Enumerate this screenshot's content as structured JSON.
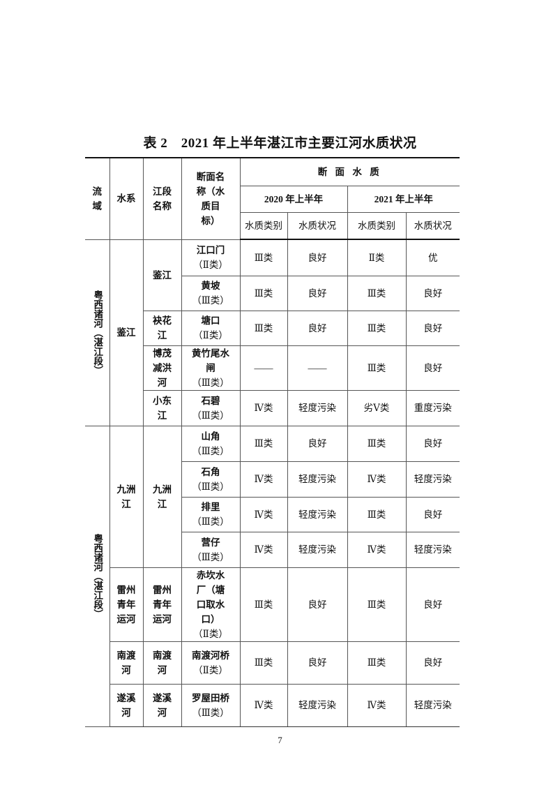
{
  "title": "表 2　2021 年上半年湛江市主要江河水质状况",
  "header": {
    "basin": "流域",
    "system": "水系",
    "segment": "江段名称",
    "section": "断面名称（水质目标）",
    "quality": "断 面 水 质",
    "year2020": "2020 年上半年",
    "year2021": "2021 年上半年",
    "category": "水质类别",
    "status": "水质状况"
  },
  "basins": [
    "粤西诸河（湛江段）",
    "粤西诸河（湛江段）"
  ],
  "systems": [
    "鉴江",
    "九洲江",
    "雷州青年运河",
    "南渡河",
    "遂溪河"
  ],
  "segments": [
    "鉴江",
    "袂花江",
    "博茂减洪河",
    "小东江",
    "九洲江",
    "雷州青年运河",
    "南渡河",
    "遂溪河"
  ],
  "rows": [
    {
      "name": "江口门",
      "target": "（Ⅱ类）",
      "c2020": "Ⅲ类",
      "s2020": "良好",
      "c2021": "Ⅱ类",
      "s2021": "优"
    },
    {
      "name": "黄坡",
      "target": "（Ⅲ类）",
      "c2020": "Ⅲ类",
      "s2020": "良好",
      "c2021": "Ⅲ类",
      "s2021": "良好"
    },
    {
      "name": "塘口",
      "target": "（Ⅱ类）",
      "c2020": "Ⅲ类",
      "s2020": "良好",
      "c2021": "Ⅲ类",
      "s2021": "良好"
    },
    {
      "name": "黄竹尾水闸",
      "target": "（Ⅲ类）",
      "c2020": "——",
      "s2020": "——",
      "c2021": "Ⅲ类",
      "s2021": "良好"
    },
    {
      "name": "石碧",
      "target": "（Ⅲ类）",
      "c2020": "Ⅳ类",
      "s2020": "轻度污染",
      "c2021": "劣Ⅴ类",
      "s2021": "重度污染"
    },
    {
      "name": "山角",
      "target": "（Ⅲ类）",
      "c2020": "Ⅲ类",
      "s2020": "良好",
      "c2021": "Ⅲ类",
      "s2021": "良好"
    },
    {
      "name": "石角",
      "target": "（Ⅲ类）",
      "c2020": "Ⅳ类",
      "s2020": "轻度污染",
      "c2021": "Ⅳ类",
      "s2021": "轻度污染"
    },
    {
      "name": "排里",
      "target": "（Ⅲ类）",
      "c2020": "Ⅳ类",
      "s2020": "轻度污染",
      "c2021": "Ⅲ类",
      "s2021": "良好"
    },
    {
      "name": "营仔",
      "target": "（Ⅲ类）",
      "c2020": "Ⅳ类",
      "s2020": "轻度污染",
      "c2021": "Ⅳ类",
      "s2021": "轻度污染"
    },
    {
      "name": "赤坎水厂（塘口取水口）",
      "target": "（Ⅱ类）",
      "c2020": "Ⅲ类",
      "s2020": "良好",
      "c2021": "Ⅲ类",
      "s2021": "良好"
    },
    {
      "name": "南渡河桥",
      "target": "（Ⅱ类）",
      "c2020": "Ⅲ类",
      "s2020": "良好",
      "c2021": "Ⅲ类",
      "s2021": "良好"
    },
    {
      "name": "罗屋田桥",
      "target": "（Ⅲ类）",
      "c2020": "Ⅳ类",
      "s2020": "轻度污染",
      "c2021": "Ⅳ类",
      "s2021": "轻度污染"
    }
  ],
  "page_number": "7"
}
